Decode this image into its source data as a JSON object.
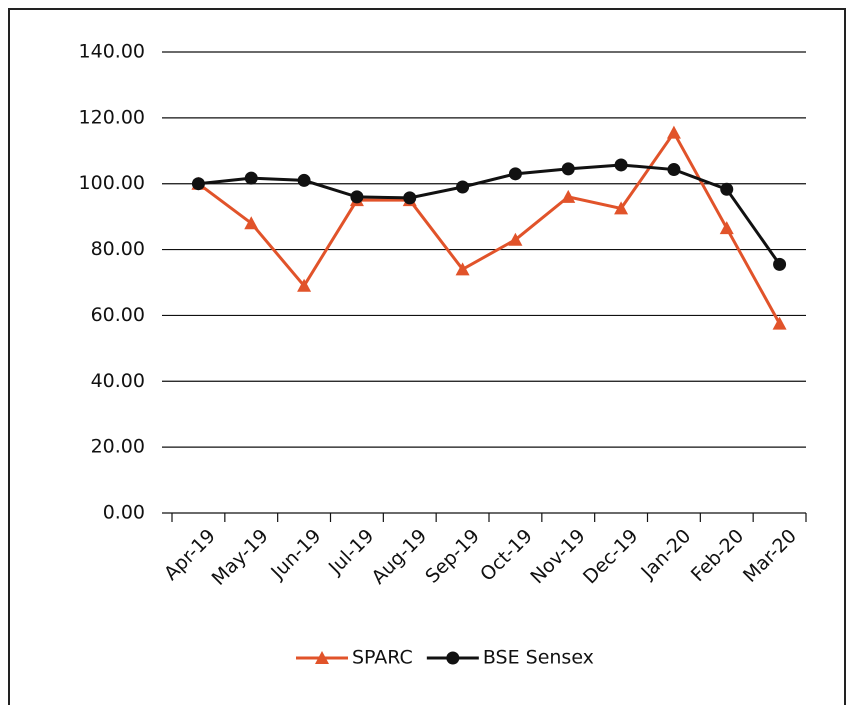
{
  "chart_data": {
    "type": "line",
    "categories": [
      "Apr-19",
      "May-19",
      "Jun-19",
      "Jul-19",
      "Aug-19",
      "Sep-19",
      "Oct-19",
      "Nov-19",
      "Dec-19",
      "Jan-20",
      "Feb-20",
      "Mar-20"
    ],
    "series": [
      {
        "name": "SPARC",
        "color": "#e1532a",
        "marker": "triangle",
        "values": [
          100,
          88,
          69,
          95,
          95,
          74,
          83,
          96,
          92.5,
          115.5,
          86.5,
          57.5
        ]
      },
      {
        "name": "BSE Sensex",
        "color": "#111111",
        "marker": "circle",
        "values": [
          100,
          101.7,
          101,
          96,
          95.7,
          99,
          103,
          104.5,
          105.7,
          104.3,
          98.3,
          75.5
        ]
      }
    ],
    "ylim": [
      0,
      140
    ],
    "yticks": [
      {
        "value": 0,
        "label": "0.00"
      },
      {
        "value": 20,
        "label": "20.00"
      },
      {
        "value": 40,
        "label": "40.00"
      },
      {
        "value": 60,
        "label": "60.00"
      },
      {
        "value": 80,
        "label": "80.00"
      },
      {
        "value": 100,
        "label": "100.00"
      },
      {
        "value": 120,
        "label": "120.00"
      },
      {
        "value": 140,
        "label": "140.00"
      }
    ],
    "grid": true,
    "legend": "bottom"
  }
}
